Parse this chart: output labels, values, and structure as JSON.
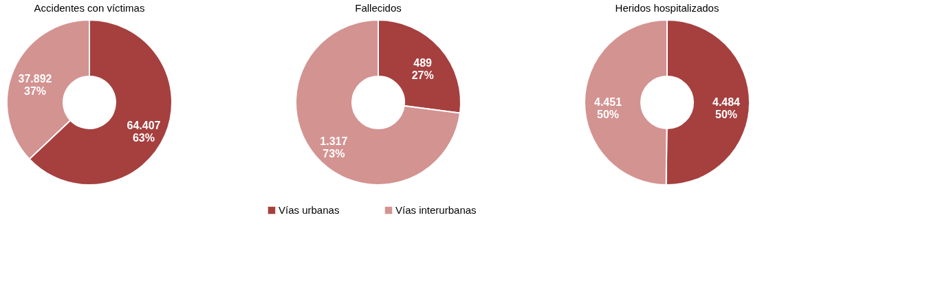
{
  "chart_data": [
    {
      "type": "donut",
      "title": "Accidentes con víctimas",
      "categories": [
        "Vías urbanas",
        "Vías interurbanas"
      ],
      "values": [
        64407,
        37892
      ],
      "colors": [
        "#a5403f",
        "#d39391"
      ],
      "value_labels": [
        "64.407\n63%",
        "37.892\n37%"
      ],
      "legend": "bottom"
    },
    {
      "type": "donut",
      "title": "Fallecidos",
      "categories": [
        null,
        null
      ],
      "values": [
        489,
        1317
      ],
      "colors": [
        "#a5403f",
        "#d39391"
      ],
      "value_labels": [
        "489\n27%",
        "1.317\n73%"
      ]
    },
    {
      "type": "donut",
      "title": "Heridos hospitalizados",
      "categories": [
        null,
        null
      ],
      "values": [
        4484,
        4451
      ],
      "colors": [
        "#a5403f",
        "#d39391"
      ],
      "value_labels": [
        "4.484\n50%",
        "4.451\n50%"
      ]
    }
  ]
}
